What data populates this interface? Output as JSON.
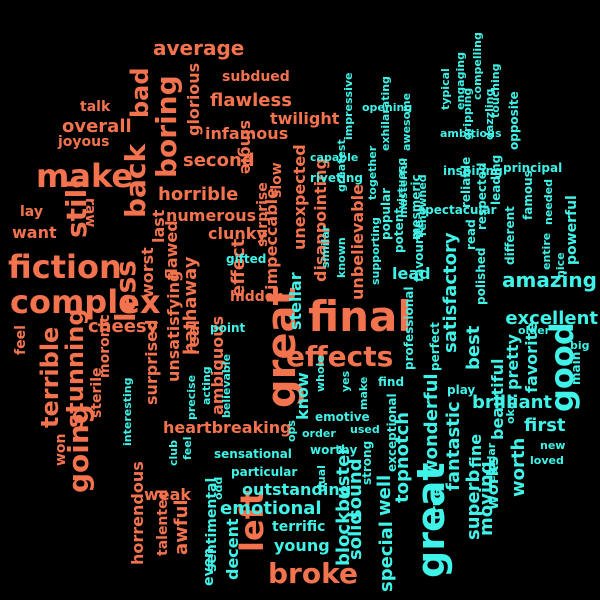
{
  "colors": {
    "negative": "#f4734f",
    "positive": "#3ff3e8",
    "background": "#000000"
  },
  "words": [
    {
      "text": "final"
    },
    {
      "text": "great"
    },
    {
      "text": "great"
    },
    {
      "text": "effects"
    },
    {
      "text": "complex"
    },
    {
      "text": "fiction"
    },
    {
      "text": "make"
    },
    {
      "text": "good"
    },
    {
      "text": "left"
    },
    {
      "text": "broke"
    },
    {
      "text": "back"
    },
    {
      "text": "less"
    },
    {
      "text": "still"
    },
    {
      "text": "going"
    },
    {
      "text": "boring"
    },
    {
      "text": "terrible"
    },
    {
      "text": "stunning"
    },
    {
      "text": "amazing"
    },
    {
      "text": "average"
    },
    {
      "text": "bad"
    },
    {
      "text": "excellent"
    },
    {
      "text": "overall"
    },
    {
      "text": "flawless"
    },
    {
      "text": "second"
    },
    {
      "text": "horrible"
    },
    {
      "text": "brilliant"
    },
    {
      "text": "first"
    },
    {
      "text": "emotional"
    },
    {
      "text": "cheesy"
    },
    {
      "text": "hathaway"
    },
    {
      "text": "worth"
    },
    {
      "text": "satisfactory"
    },
    {
      "text": "fantastic"
    },
    {
      "text": "moving"
    },
    {
      "text": "blockbuster"
    },
    {
      "text": "sound"
    },
    {
      "text": "solid"
    },
    {
      "text": "special"
    },
    {
      "text": "well"
    },
    {
      "text": "topnotch"
    },
    {
      "text": "wonderful"
    },
    {
      "text": "true"
    },
    {
      "text": "superb"
    },
    {
      "text": "fine"
    },
    {
      "text": "works"
    },
    {
      "text": "beautiful"
    },
    {
      "text": "pretty"
    },
    {
      "text": "favorite"
    },
    {
      "text": "best"
    },
    {
      "text": "lead"
    },
    {
      "text": "unbelievable"
    },
    {
      "text": "disappointing"
    },
    {
      "text": "unexpected"
    },
    {
      "text": "impeccable"
    },
    {
      "text": "stellar"
    },
    {
      "text": "know"
    },
    {
      "text": "outstanding"
    },
    {
      "text": "terrific"
    },
    {
      "text": "young"
    },
    {
      "text": "decent"
    },
    {
      "text": "even"
    },
    {
      "text": "sentimental"
    },
    {
      "text": "awful"
    },
    {
      "text": "talented"
    },
    {
      "text": "horrendous"
    },
    {
      "text": "weak"
    },
    {
      "text": "heartbreaking"
    },
    {
      "text": "surprised"
    },
    {
      "text": "unsatisfying"
    },
    {
      "text": "ambiguous"
    },
    {
      "text": "real"
    },
    {
      "text": "effect"
    },
    {
      "text": "flawed"
    },
    {
      "text": "worst"
    },
    {
      "text": "last"
    },
    {
      "text": "numerous"
    },
    {
      "text": "clunky"
    },
    {
      "text": "hidden"
    },
    {
      "text": "infamous"
    },
    {
      "text": "twilight"
    },
    {
      "text": "subdued"
    },
    {
      "text": "glorious"
    },
    {
      "text": "single"
    },
    {
      "text": "slow"
    },
    {
      "text": "surprise"
    },
    {
      "text": "want"
    },
    {
      "text": "lay"
    },
    {
      "text": "raw"
    },
    {
      "text": "talk"
    },
    {
      "text": "joyous"
    },
    {
      "text": "feel"
    },
    {
      "text": "moronic"
    },
    {
      "text": "sterile"
    },
    {
      "text": "won"
    },
    {
      "text": "interesting"
    },
    {
      "text": "precise"
    },
    {
      "text": "acting"
    },
    {
      "text": "believable"
    },
    {
      "text": "gifted"
    },
    {
      "text": "point"
    },
    {
      "text": "sensational"
    },
    {
      "text": "particular"
    },
    {
      "text": "club"
    },
    {
      "text": "feel"
    },
    {
      "text": "odd"
    },
    {
      "text": "ops"
    },
    {
      "text": "order"
    },
    {
      "text": "worthy"
    },
    {
      "text": "dual"
    },
    {
      "text": "used"
    },
    {
      "text": "strong"
    },
    {
      "text": "exceptional"
    },
    {
      "text": "emotive"
    },
    {
      "text": "make"
    },
    {
      "text": "yes"
    },
    {
      "text": "whole"
    },
    {
      "text": "find"
    },
    {
      "text": "play"
    },
    {
      "text": "professional"
    },
    {
      "text": "perfect"
    },
    {
      "text": "favourite"
    },
    {
      "text": "potent"
    },
    {
      "text": "mesmeric"
    },
    {
      "text": "popular"
    },
    {
      "text": "supporting"
    },
    {
      "text": "known"
    },
    {
      "text": "similar"
    },
    {
      "text": "greatest"
    },
    {
      "text": "riveting"
    },
    {
      "text": "capable"
    },
    {
      "text": "impressive"
    },
    {
      "text": "opening"
    },
    {
      "text": "exhilarating"
    },
    {
      "text": "awesome"
    },
    {
      "text": "virtuoso"
    },
    {
      "text": "masterful"
    },
    {
      "text": "renowned"
    },
    {
      "text": "together"
    },
    {
      "text": "spectacular"
    },
    {
      "text": "inspiring"
    },
    {
      "text": "reliable"
    },
    {
      "text": "respected"
    },
    {
      "text": "leading"
    },
    {
      "text": "read"
    },
    {
      "text": "polished"
    },
    {
      "text": "regular"
    },
    {
      "text": "okay"
    },
    {
      "text": "loved"
    },
    {
      "text": "new"
    },
    {
      "text": "main"
    },
    {
      "text": "big"
    },
    {
      "text": "older"
    },
    {
      "text": "nice"
    },
    {
      "text": "entire"
    },
    {
      "text": "powerful"
    },
    {
      "text": "needed"
    },
    {
      "text": "famous"
    },
    {
      "text": "different"
    },
    {
      "text": "principal"
    },
    {
      "text": "opposite"
    },
    {
      "text": "dazzling"
    },
    {
      "text": "gripping"
    },
    {
      "text": "ambitious"
    },
    {
      "text": "typical"
    },
    {
      "text": "engaging"
    },
    {
      "text": "compelling"
    },
    {
      "text": "touching"
    }
  ]
}
